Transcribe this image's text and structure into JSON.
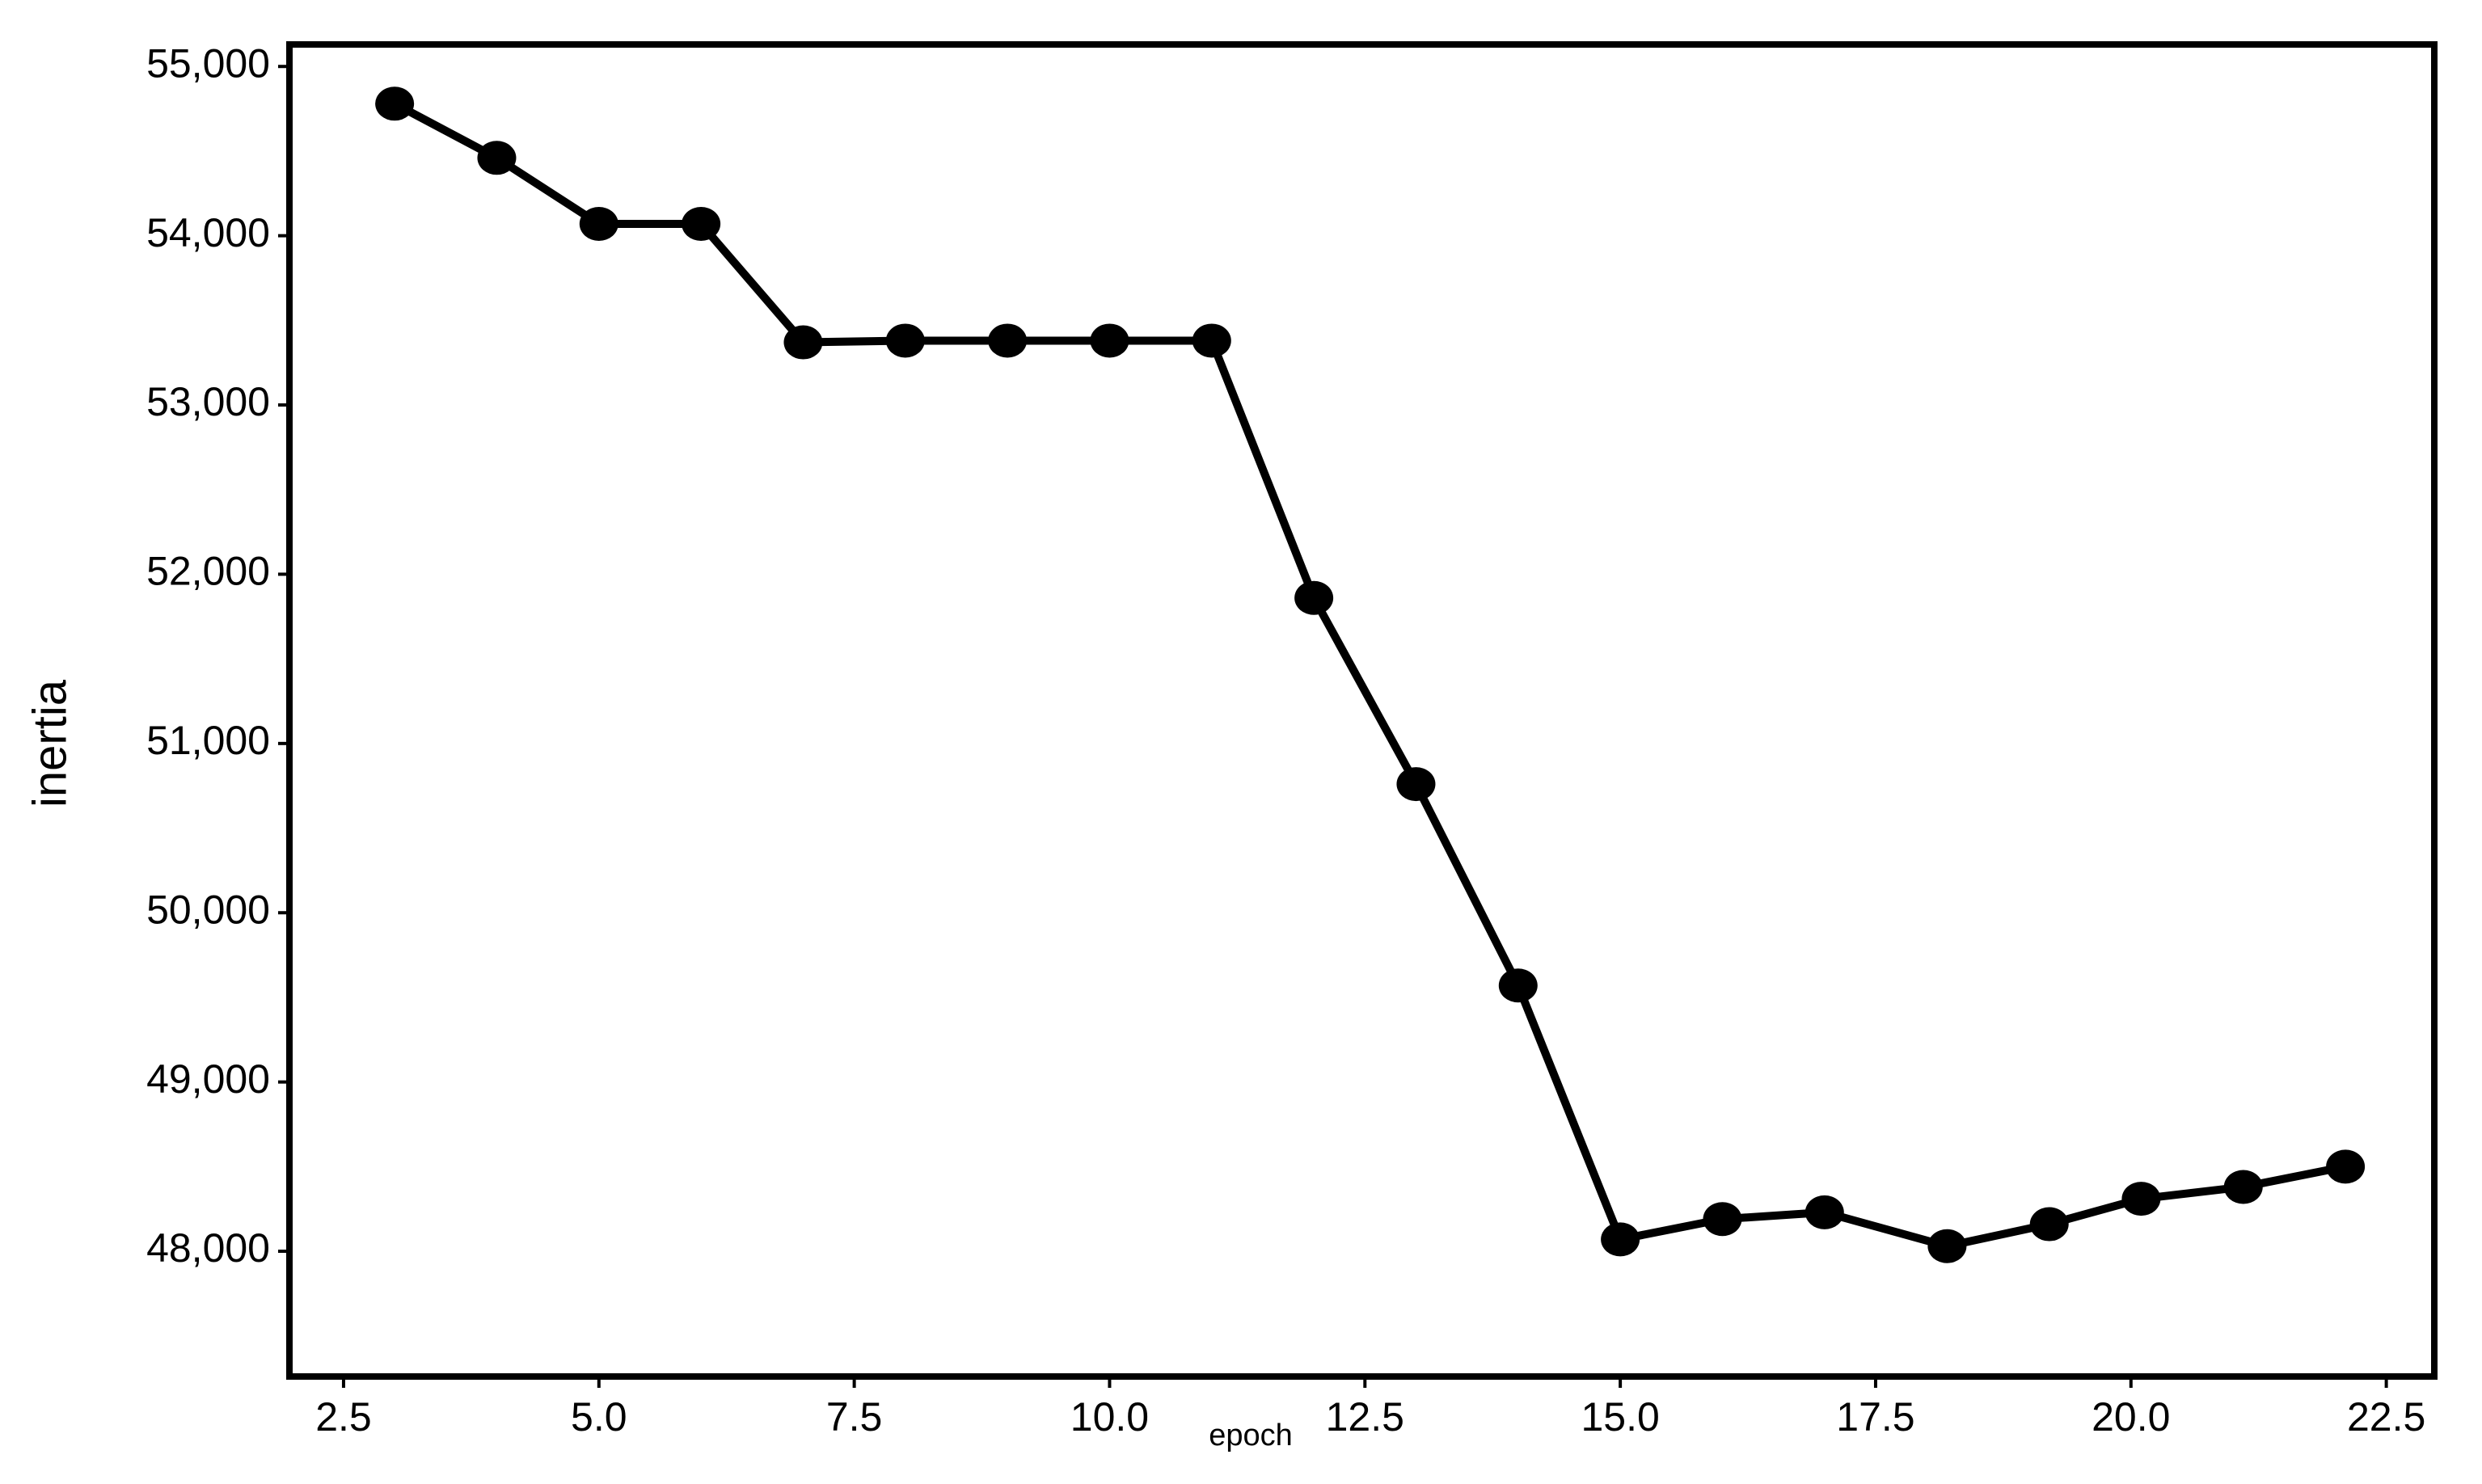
{
  "chart_data": {
    "type": "line",
    "x_label": "epoch",
    "y_label": "inertia",
    "x": [
      3,
      4,
      5,
      6,
      7,
      8,
      9,
      10,
      11,
      12,
      13,
      14,
      15,
      16,
      17,
      18.2,
      19.2,
      20.1,
      21.1,
      22.1
    ],
    "values": [
      54780,
      54460,
      54070,
      54070,
      53370,
      53380,
      53380,
      53380,
      53380,
      51860,
      50760,
      49570,
      48070,
      48190,
      48230,
      48030,
      48160,
      48310,
      48380,
      48500
    ],
    "color": "#000000",
    "xlim": [
      1.97,
      22.97
    ],
    "xticks": [
      2.5,
      {
        "value": 5,
        "label": "5.0"
      },
      7.5,
      {
        "value": 10,
        "label": "10.0"
      },
      12.5,
      {
        "value": 15,
        "label": "15.0"
      },
      17.5,
      {
        "value": 20,
        "label": "20.0"
      },
      22.5
    ],
    "ylim": [
      47260,
      55130
    ],
    "yticks": [
      {
        "value": 48000,
        "label": "48,000"
      },
      {
        "value": 49000,
        "label": "49,000"
      },
      {
        "value": 50000,
        "label": "50,000"
      },
      {
        "value": 51000,
        "label": "51,000"
      },
      {
        "value": 52000,
        "label": "52,000"
      },
      {
        "value": 53000,
        "label": "53,000"
      },
      {
        "value": 54000,
        "label": "54,000"
      },
      {
        "value": 55000,
        "label": "55,000"
      }
    ],
    "grid": false
  }
}
